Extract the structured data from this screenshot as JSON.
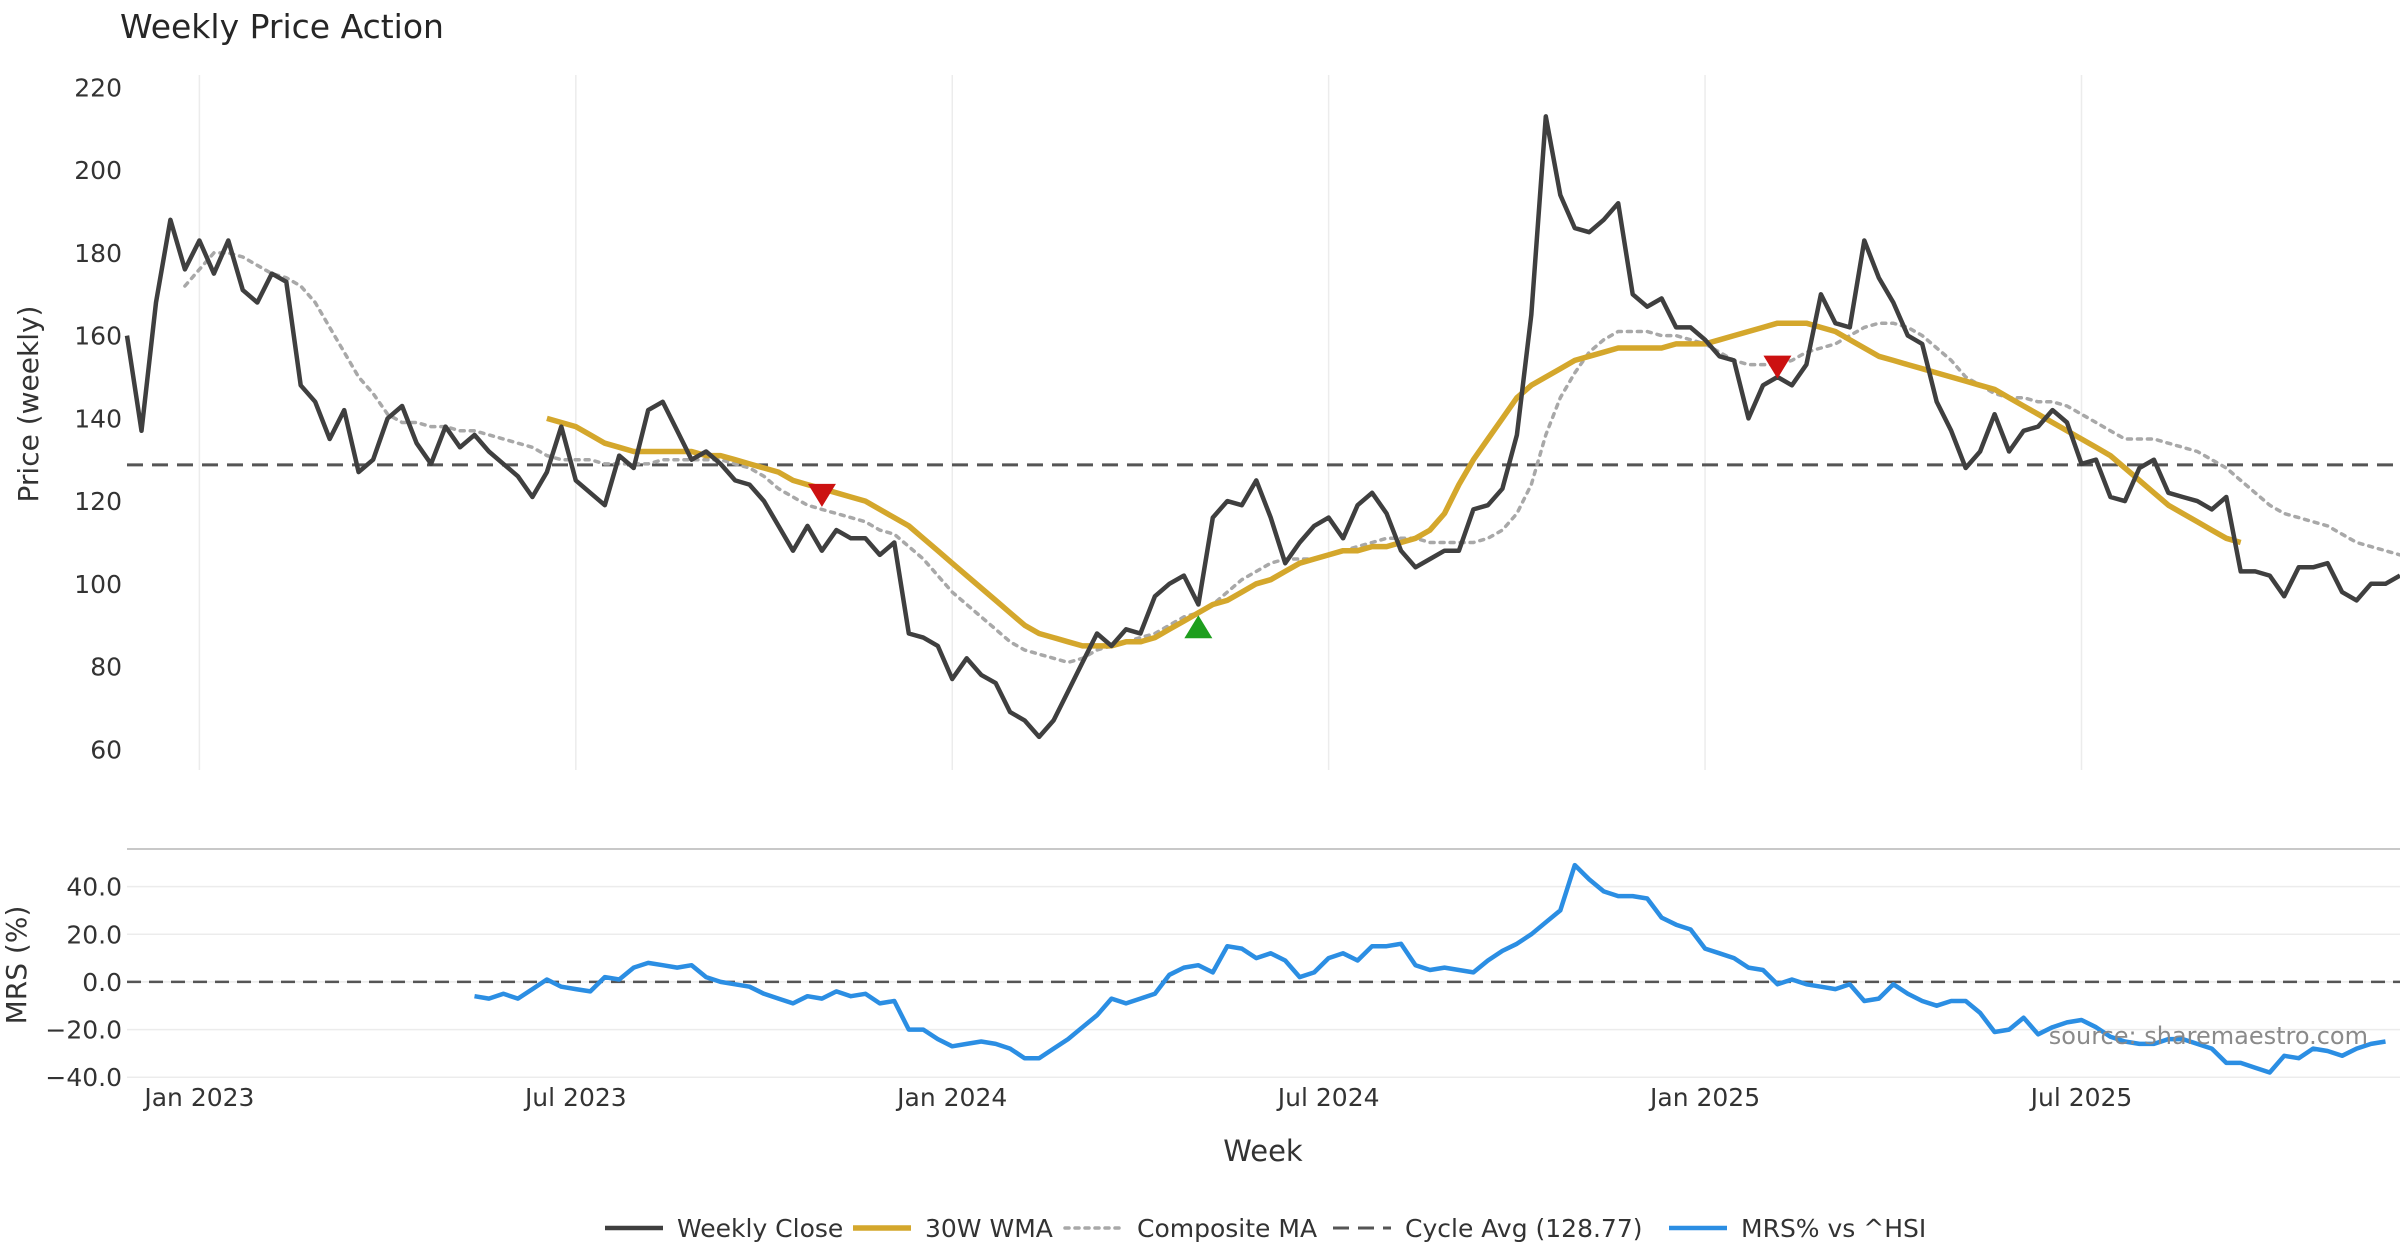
{
  "chart_data": {
    "type": "line",
    "title": "Weekly Price Action",
    "xlabel": "Week",
    "source_note": "source: sharemaestro.com",
    "x_ticks": [
      "Jan 2023",
      "Jul 2023",
      "Jan 2024",
      "Jul 2024",
      "Jan 2025",
      "Jul 2025"
    ],
    "price_panel": {
      "ylabel": "Price (weekly)",
      "ylim": [
        55,
        223
      ],
      "y_ticks": [
        "60",
        "80",
        "100",
        "120",
        "140",
        "160",
        "180",
        "200",
        "220"
      ],
      "cycle_avg": 128.77,
      "weekly_close": [
        160,
        137,
        168,
        188,
        176,
        183,
        175,
        183,
        171,
        168,
        175,
        173,
        148,
        144,
        135,
        142,
        127,
        130,
        140,
        143,
        134,
        129,
        138,
        133,
        136,
        132,
        129,
        126,
        121,
        127,
        138,
        125,
        122,
        119,
        131,
        128,
        142,
        144,
        137,
        130,
        132,
        129,
        125,
        124,
        120,
        114,
        108,
        114,
        108,
        113,
        111,
        111,
        107,
        110,
        88,
        87,
        85,
        77,
        82,
        78,
        76,
        69,
        67,
        63,
        67,
        74,
        81,
        88,
        85,
        89,
        88,
        97,
        100,
        102,
        95,
        116,
        120,
        119,
        125,
        116,
        105,
        110,
        114,
        116,
        111,
        119,
        122,
        117,
        108,
        104,
        106,
        108,
        108,
        118,
        119,
        123,
        136,
        165,
        213,
        194,
        186,
        185,
        188,
        192,
        170,
        167,
        169,
        162,
        162,
        159,
        155,
        154,
        140,
        148,
        150,
        148,
        153,
        170,
        163,
        162,
        183,
        174,
        168,
        160,
        158,
        144,
        137,
        128,
        132,
        141,
        132,
        137,
        138,
        142,
        139,
        129,
        130,
        121,
        120,
        128,
        130,
        122,
        121,
        120,
        118,
        121,
        103,
        103,
        102,
        97,
        104,
        104,
        105,
        98,
        96,
        100,
        100,
        102
      ],
      "wma_30": [
        null,
        null,
        null,
        null,
        null,
        null,
        null,
        null,
        null,
        null,
        null,
        null,
        null,
        null,
        null,
        null,
        null,
        null,
        null,
        null,
        null,
        null,
        null,
        null,
        null,
        null,
        null,
        null,
        null,
        140,
        139,
        138,
        136,
        134,
        133,
        132,
        132,
        132,
        132,
        132,
        131,
        131,
        130,
        129,
        128,
        127,
        125,
        124,
        123,
        122,
        121,
        120,
        118,
        116,
        114,
        111,
        108,
        105,
        102,
        99,
        96,
        93,
        90,
        88,
        87,
        86,
        85,
        85,
        85,
        86,
        86,
        87,
        89,
        91,
        93,
        95,
        96,
        98,
        100,
        101,
        103,
        105,
        106,
        107,
        108,
        108,
        109,
        109,
        110,
        111,
        113,
        117,
        124,
        130,
        135,
        140,
        145,
        148,
        150,
        152,
        154,
        155,
        156,
        157,
        157,
        157,
        157,
        158,
        158,
        158,
        159,
        160,
        161,
        162,
        163,
        163,
        163,
        162,
        161,
        159,
        157,
        155,
        154,
        153,
        152,
        151,
        150,
        149,
        148,
        147,
        145,
        143,
        141,
        139,
        137,
        135,
        133,
        131,
        128,
        125,
        122,
        119,
        117,
        115,
        113,
        111,
        110
      ],
      "composite_ma": [
        null,
        null,
        null,
        null,
        172,
        176,
        180,
        180,
        179,
        177,
        175,
        174,
        172,
        168,
        162,
        156,
        150,
        146,
        141,
        139,
        139,
        138,
        138,
        137,
        137,
        136,
        135,
        134,
        133,
        131,
        130,
        130,
        130,
        129,
        129,
        129,
        129,
        130,
        130,
        130,
        130,
        130,
        129,
        128,
        126,
        123,
        121,
        119,
        118,
        117,
        116,
        115,
        113,
        112,
        109,
        106,
        102,
        98,
        95,
        92,
        89,
        86,
        84,
        83,
        82,
        81,
        82,
        84,
        85,
        86,
        87,
        88,
        90,
        92,
        93,
        95,
        98,
        101,
        103,
        105,
        106,
        106,
        106,
        107,
        108,
        109,
        110,
        111,
        111,
        111,
        110,
        110,
        110,
        110,
        111,
        113,
        117,
        124,
        136,
        145,
        151,
        156,
        159,
        161,
        161,
        161,
        160,
        160,
        159,
        158,
        156,
        154,
        153,
        153,
        153,
        154,
        156,
        157,
        158,
        160,
        162,
        163,
        163,
        162,
        160,
        157,
        154,
        150,
        148,
        146,
        145,
        145,
        144,
        144,
        143,
        141,
        139,
        137,
        135,
        135,
        135,
        134,
        133,
        132,
        130,
        128,
        125,
        122,
        119,
        117,
        116,
        115,
        114,
        112,
        110,
        109,
        108,
        107
      ],
      "signals": [
        {
          "type": "sell",
          "index": 48,
          "value": 121.5
        },
        {
          "type": "buy",
          "index": 74,
          "value": 89.5
        },
        {
          "type": "sell",
          "index": 114,
          "value": 152.5
        }
      ]
    },
    "mrs_panel": {
      "ylabel": "MRS (%)",
      "ylim": [
        -42,
        52
      ],
      "y_ticks": [
        "40.0",
        "20.0",
        "0.0",
        "−20.0",
        "−40.0"
      ],
      "mrs_start_index": 24,
      "mrs": [
        -6,
        -7,
        -5,
        -7,
        -3,
        1,
        -2,
        -3,
        -4,
        2,
        1,
        6,
        8,
        7,
        6,
        7,
        2,
        0,
        -1,
        -2,
        -5,
        -7,
        -9,
        -6,
        -7,
        -4,
        -6,
        -5,
        -9,
        -8,
        -20,
        -20,
        -24,
        -27,
        -26,
        -25,
        -26,
        -28,
        -32,
        -32,
        -28,
        -24,
        -19,
        -14,
        -7,
        -9,
        -7,
        -5,
        3,
        6,
        7,
        4,
        15,
        14,
        10,
        12,
        9,
        2,
        4,
        10,
        12,
        9,
        15,
        15,
        16,
        7,
        5,
        6,
        5,
        4,
        9,
        13,
        16,
        20,
        25,
        30,
        49,
        43,
        38,
        36,
        36,
        35,
        27,
        24,
        22,
        14,
        12,
        10,
        6,
        5,
        -1,
        1,
        -1,
        -2,
        -3,
        -1,
        -8,
        -7,
        -1,
        -5,
        -8,
        -10,
        -8,
        -8,
        -13,
        -21,
        -20,
        -15,
        -22,
        -19,
        -17,
        -16,
        -19,
        -23,
        -25,
        -26,
        -26,
        -24,
        -24,
        -26,
        -28,
        -34,
        -34,
        -36,
        -38,
        -31,
        -32,
        -28,
        -29,
        -31,
        -28,
        -26,
        -25
      ]
    },
    "legend": [
      {
        "key": "close",
        "label": "Weekly Close",
        "color": "#3f3f3f",
        "style": "solid"
      },
      {
        "key": "wma",
        "label": "30W WMA",
        "color": "#d4a72c",
        "style": "solid"
      },
      {
        "key": "comp",
        "label": "Composite MA",
        "color": "#a8a8a8",
        "style": "dotted"
      },
      {
        "key": "cycle",
        "label": "Cycle Avg (128.77)",
        "color": "#555555",
        "style": "dashed"
      },
      {
        "key": "mrs",
        "label": "MRS% vs ^HSI",
        "color": "#2b8ee3",
        "style": "solid"
      }
    ],
    "colors": {
      "close": "#3f3f3f",
      "wma": "#d4a72c",
      "comp": "#a8a8a8",
      "cycle": "#555555",
      "mrs": "#2b8ee3",
      "sell": "#cc1111",
      "buy": "#1e9e1e"
    }
  }
}
